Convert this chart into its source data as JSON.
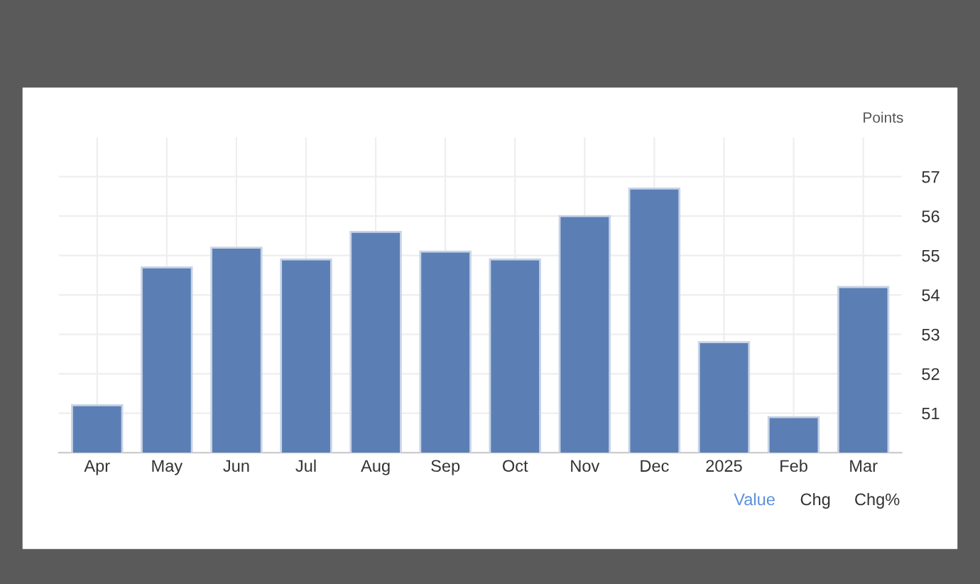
{
  "chart_data": {
    "type": "bar",
    "ylabel": "Points",
    "categories": [
      "Apr",
      "May",
      "Jun",
      "Jul",
      "Aug",
      "Sep",
      "Oct",
      "Nov",
      "Dec",
      "2025",
      "Feb",
      "Mar"
    ],
    "values": [
      51.2,
      54.7,
      55.2,
      54.9,
      55.6,
      55.1,
      54.9,
      56.0,
      56.7,
      52.8,
      50.9,
      54.2
    ],
    "color": "#5b7fb5",
    "ylim": [
      50,
      58
    ],
    "yticks": [
      51,
      52,
      53,
      54,
      55,
      56,
      57
    ],
    "grid": true,
    "annotations": [
      "Value",
      "Chg",
      "Chg%"
    ]
  }
}
